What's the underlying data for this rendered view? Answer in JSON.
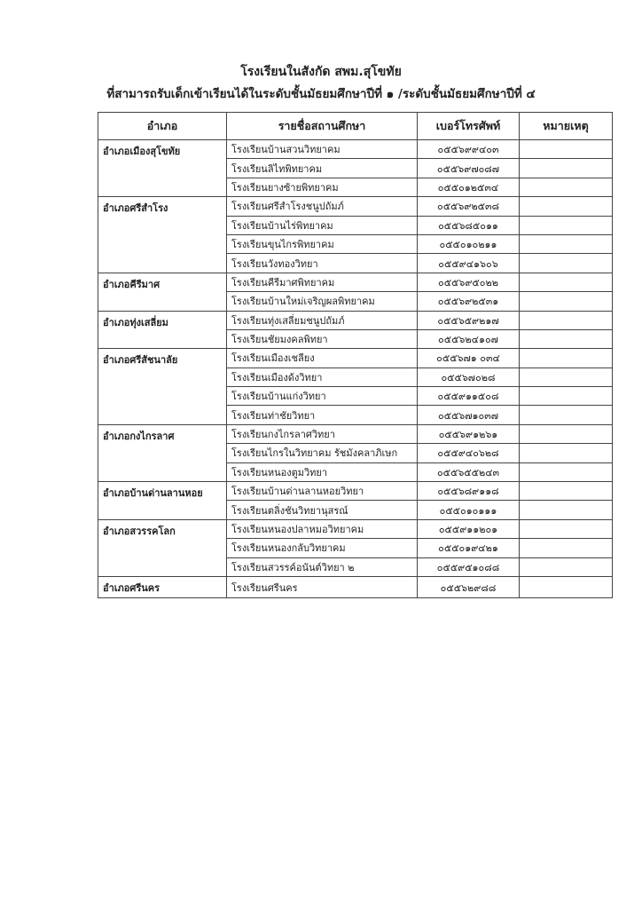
{
  "header": {
    "title": "โรงเรียนในสังกัด สพม.สุโขทัย",
    "subtitle": "ที่สามารถรับเด็กเข้าเรียนได้ในระดับชั้นมัธยมศึกษาปีที่ ๑ /ระดับชั้นมัธยมศึกษาปีที่ ๔"
  },
  "table": {
    "columns": [
      "อำเภอ",
      "รายชื่อสถานศึกษา",
      "เบอร์โทรศัพท์",
      "หมายเหตุ"
    ],
    "groups": [
      {
        "district": "อำเภอเมืองสุโขทัย",
        "schools": [
          {
            "name": "โรงเรียนบ้านสวนวิทยาคม",
            "phone": "๐๕๕๖๙๙๔๐๓"
          },
          {
            "name": "โรงเรียนลิไทพิทยาคม",
            "phone": "๐๕๕๖๙๗๐๘๗"
          },
          {
            "name": "โรงเรียนยางซ้ายพิทยาคม",
            "phone": "๐๕๕๐๑๒๕๓๔"
          }
        ]
      },
      {
        "district": "อำเภอศรีสำโรง",
        "schools": [
          {
            "name": "โรงเรียนศรีสำโรงชนูปถัมภ์",
            "phone": "๐๕๕๖๙๒๕๓๘"
          },
          {
            "name": "โรงเรียนบ้านไร่พิทยาคม",
            "phone": "๐๕๕๖๘๕๐๑๑"
          },
          {
            "name": "โรงเรียนขุนไกรพิทยาคม",
            "phone": "๐๕๕๐๑๐๒๑๑"
          },
          {
            "name": "โรงเรียนวังทองวิทยา",
            "phone": "๐๕๕๙๔๑๖๐๖"
          }
        ]
      },
      {
        "district": "อำเภอคีรีมาศ",
        "schools": [
          {
            "name": "โรงเรียนคีรีมาศพิทยาคม",
            "phone": "๐๕๕๖๙๕๐๒๒"
          },
          {
            "name": "โรงเรียนบ้านใหม่เจริญผลพิทยาคม",
            "phone": "๐๕๕๖๙๒๕๓๑"
          }
        ]
      },
      {
        "district": "อำเภอทุ่งเสลี่ยม",
        "schools": [
          {
            "name": "โรงเรียนทุ่งเสลี่ยมชนูปถัมภ์",
            "phone": "๐๕๕๖๕๙๒๑๗"
          },
          {
            "name": "โรงเรียนชัยมงคลพิทยา",
            "phone": "๐๕๕๖๒๔๑๐๗"
          }
        ]
      },
      {
        "district": "อำเภอศรีสัชนาลัย",
        "schools": [
          {
            "name": "โรงเรียนเมืองเชลียง",
            "phone": "๐๕๕๖๗๑ ๐๓๔"
          },
          {
            "name": "โรงเรียนเมืองด้งวิทยา",
            "phone": "๐๕๕๖๗๐๒๘"
          },
          {
            "name": "โรงเรียนบ้านแก่งวิทยา",
            "phone": "๐๕๕๙๑๑๕๐๘"
          },
          {
            "name": "โรงเรียนท่าชัยวิทยา",
            "phone": "๐๕๕๖๗๑๐๓๗"
          }
        ]
      },
      {
        "district": "อำเภอกงไกรลาศ",
        "schools": [
          {
            "name": "โรงเรียนกงไกรลาศวิทยา",
            "phone": "๐๕๕๖๙๑๒๖๑"
          },
          {
            "name": "โรงเรียนไกรในวิทยาคม รัชมังคลาภิเษก",
            "phone": "๐๕๕๙๔๐๖๒๘"
          },
          {
            "name": "โรงเรียนหนองตูมวิทยา",
            "phone": "๐๕๕๖๕๕๒๔๓"
          }
        ]
      },
      {
        "district": "อำเภอบ้านด่านลานหอย",
        "schools": [
          {
            "name": "โรงเรียนบ้านด่านลานหอยวิทยา",
            "phone": "๐๕๕๖๘๙๑๑๘"
          },
          {
            "name": "โรงเรียนตลิ่งชันวิทยานุสรณ์",
            "phone": "๐๕๕๐๑๐๑๑๑"
          }
        ]
      },
      {
        "district": "อำเภอสวรรคโลก",
        "schools": [
          {
            "name": "โรงเรียนหนองปลาหมอวิทยาคม",
            "phone": "๐๕๕๙๑๑๒๐๑"
          },
          {
            "name": "โรงเรียนหนองกลับวิทยาคม",
            "phone": "๐๕๕๐๑๙๔๒๑"
          },
          {
            "name": "โรงเรียนสวรรค์อนันต์วิทยา ๒",
            "phone": "๐๕๕๙๕๑๐๘๘"
          }
        ]
      },
      {
        "district": "อำเภอศรีนคร",
        "schools": [
          {
            "name": "โรงเรียนศรีนคร",
            "phone": "๐๕๕๖๒๙๘๘"
          }
        ]
      }
    ]
  }
}
